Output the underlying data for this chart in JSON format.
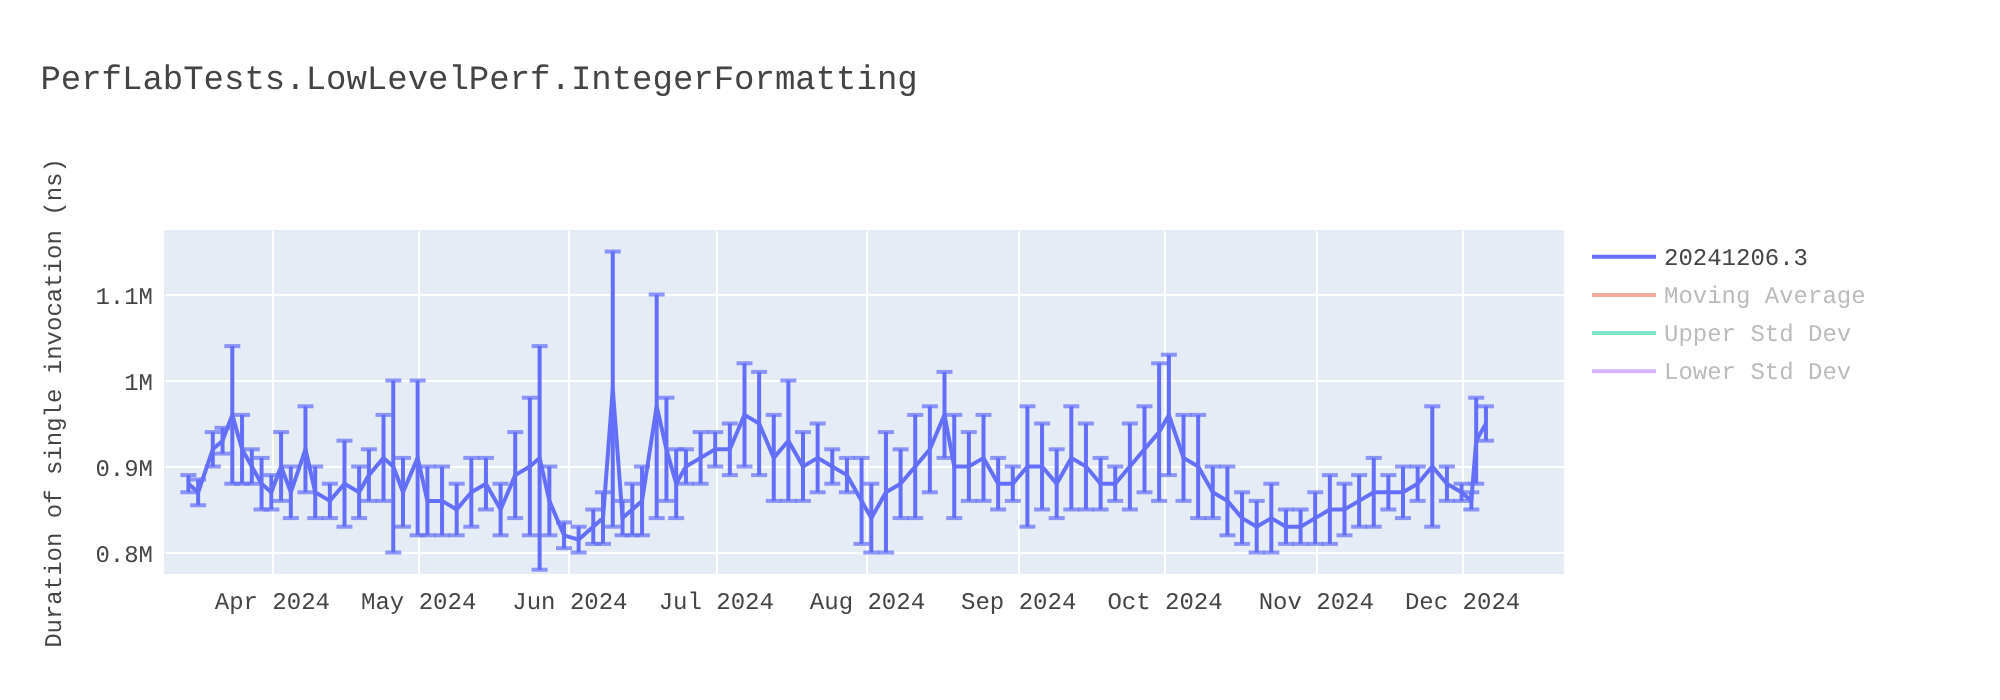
{
  "chart_data": {
    "type": "line",
    "title": "PerfLabTests.LowLevelPerf.IntegerFormatting",
    "ylabel": "Duration of single invocation (ns)",
    "x": [
      "2024-03-15",
      "2024-03-17",
      "2024-03-20",
      "2024-03-22",
      "2024-03-24",
      "2024-03-26",
      "2024-03-28",
      "2024-03-30",
      "2024-04-01",
      "2024-04-03",
      "2024-04-05",
      "2024-04-08",
      "2024-04-10",
      "2024-04-13",
      "2024-04-16",
      "2024-04-19",
      "2024-04-21",
      "2024-04-24",
      "2024-04-26",
      "2024-04-28",
      "2024-05-01",
      "2024-05-03",
      "2024-05-06",
      "2024-05-09",
      "2024-05-12",
      "2024-05-15",
      "2024-05-18",
      "2024-05-21",
      "2024-05-24",
      "2024-05-26",
      "2024-05-28",
      "2024-05-31",
      "2024-06-03",
      "2024-06-06",
      "2024-06-08",
      "2024-06-10",
      "2024-06-12",
      "2024-06-14",
      "2024-06-16",
      "2024-06-19",
      "2024-06-21",
      "2024-06-23",
      "2024-06-25",
      "2024-06-28",
      "2024-07-01",
      "2024-07-04",
      "2024-07-07",
      "2024-07-10",
      "2024-07-13",
      "2024-07-16",
      "2024-07-19",
      "2024-07-22",
      "2024-07-25",
      "2024-07-28",
      "2024-07-31",
      "2024-08-02",
      "2024-08-05",
      "2024-08-08",
      "2024-08-11",
      "2024-08-14",
      "2024-08-17",
      "2024-08-19",
      "2024-08-22",
      "2024-08-25",
      "2024-08-28",
      "2024-08-31",
      "2024-09-03",
      "2024-09-06",
      "2024-09-09",
      "2024-09-12",
      "2024-09-15",
      "2024-09-18",
      "2024-09-21",
      "2024-09-24",
      "2024-09-27",
      "2024-09-30",
      "2024-10-02",
      "2024-10-05",
      "2024-10-08",
      "2024-10-11",
      "2024-10-14",
      "2024-10-17",
      "2024-10-20",
      "2024-10-23",
      "2024-10-26",
      "2024-10-29",
      "2024-11-01",
      "2024-11-04",
      "2024-11-07",
      "2024-11-10",
      "2024-11-13",
      "2024-11-16",
      "2024-11-19",
      "2024-11-22",
      "2024-11-25",
      "2024-11-28",
      "2024-12-01",
      "2024-12-03",
      "2024-12-04",
      "2024-12-06"
    ],
    "series": [
      {
        "name": "20241206.3",
        "color": "#636efa",
        "values": [
          880000,
          870000,
          920000,
          930000,
          960000,
          920000,
          900000,
          880000,
          870000,
          900000,
          870000,
          920000,
          870000,
          860000,
          880000,
          870000,
          890000,
          910000,
          900000,
          870000,
          910000,
          860000,
          860000,
          850000,
          870000,
          880000,
          850000,
          890000,
          900000,
          910000,
          860000,
          820000,
          815000,
          830000,
          840000,
          990000,
          840000,
          850000,
          860000,
          970000,
          920000,
          880000,
          900000,
          910000,
          920000,
          920000,
          960000,
          950000,
          910000,
          930000,
          900000,
          910000,
          900000,
          890000,
          860000,
          840000,
          870000,
          880000,
          900000,
          920000,
          960000,
          900000,
          900000,
          910000,
          880000,
          880000,
          900000,
          900000,
          880000,
          910000,
          900000,
          880000,
          880000,
          900000,
          920000,
          940000,
          960000,
          910000,
          900000,
          870000,
          860000,
          840000,
          830000,
          840000,
          830000,
          830000,
          840000,
          850000,
          850000,
          860000,
          870000,
          870000,
          870000,
          880000,
          900000,
          880000,
          870000,
          860000,
          930000,
          950000
        ],
        "errors": [
          10000,
          15000,
          20000,
          15000,
          80000,
          40000,
          20000,
          30000,
          20000,
          40000,
          30000,
          50000,
          30000,
          20000,
          50000,
          30000,
          30000,
          50000,
          100000,
          40000,
          90000,
          40000,
          40000,
          30000,
          40000,
          30000,
          30000,
          50000,
          80000,
          130000,
          40000,
          15000,
          15000,
          20000,
          30000,
          160000,
          20000,
          30000,
          40000,
          130000,
          60000,
          40000,
          20000,
          30000,
          20000,
          30000,
          60000,
          60000,
          50000,
          70000,
          40000,
          40000,
          20000,
          20000,
          50000,
          40000,
          70000,
          40000,
          60000,
          50000,
          50000,
          60000,
          40000,
          50000,
          30000,
          20000,
          70000,
          50000,
          40000,
          60000,
          50000,
          30000,
          20000,
          50000,
          50000,
          80000,
          70000,
          50000,
          60000,
          30000,
          40000,
          30000,
          30000,
          40000,
          20000,
          20000,
          30000,
          40000,
          30000,
          30000,
          40000,
          20000,
          30000,
          20000,
          70000,
          20000,
          10000,
          10000,
          50000,
          20000
        ]
      },
      {
        "name": "Moving Average",
        "color": "#ef553b",
        "values": [
          null,
          null,
          null,
          null,
          null,
          null,
          null,
          null,
          null,
          null,
          null,
          null,
          null,
          null,
          null,
          null,
          null,
          null,
          null,
          null,
          null,
          null,
          null,
          null,
          null,
          null,
          null,
          null,
          null,
          null,
          null,
          null,
          null,
          null,
          null,
          null,
          null,
          null,
          null,
          null,
          null,
          null,
          null,
          null,
          null,
          null,
          null,
          null,
          null,
          null,
          null,
          null,
          null,
          null,
          null,
          null,
          null,
          null,
          null,
          null,
          null,
          null,
          null,
          null,
          null,
          null,
          null,
          null,
          null,
          null,
          null,
          null,
          null,
          null,
          null,
          null,
          null,
          null,
          null,
          null,
          null,
          null,
          null,
          null,
          null,
          null,
          null,
          null,
          null,
          null,
          null,
          null,
          null,
          null,
          null,
          null,
          null,
          null,
          null,
          null
        ]
      },
      {
        "name": "Upper Std Dev",
        "color": "#00cc96",
        "values": [
          null,
          null,
          null,
          null,
          null,
          null,
          null,
          null,
          null,
          null,
          null,
          null,
          null,
          null,
          null,
          null,
          null,
          null,
          null,
          null,
          null,
          null,
          null,
          null,
          null,
          null,
          null,
          null,
          null,
          null,
          null,
          null,
          null,
          null,
          null,
          null,
          null,
          null,
          null,
          null,
          null,
          null,
          null,
          null,
          null,
          null,
          null,
          null,
          null,
          null,
          null,
          null,
          null,
          null,
          null,
          null,
          null,
          null,
          null,
          null,
          null,
          null,
          null,
          null,
          null,
          null,
          null,
          null,
          null,
          null,
          null,
          null,
          null,
          null,
          null,
          null,
          null,
          null,
          null,
          null,
          null,
          null,
          null,
          null,
          null,
          null,
          null,
          null,
          null,
          null,
          null,
          null,
          null,
          null,
          null,
          null,
          null,
          null,
          null,
          null
        ]
      },
      {
        "name": "Lower Std Dev",
        "color": "#ab63fa",
        "values": [
          null,
          null,
          null,
          null,
          null,
          null,
          null,
          null,
          null,
          null,
          null,
          null,
          null,
          null,
          null,
          null,
          null,
          null,
          null,
          null,
          null,
          null,
          null,
          null,
          null,
          null,
          null,
          null,
          null,
          null,
          null,
          null,
          null,
          null,
          null,
          null,
          null,
          null,
          null,
          null,
          null,
          null,
          null,
          null,
          null,
          null,
          null,
          null,
          null,
          null,
          null,
          null,
          null,
          null,
          null,
          null,
          null,
          null,
          null,
          null,
          null,
          null,
          null,
          null,
          null,
          null,
          null,
          null,
          null,
          null,
          null,
          null,
          null,
          null,
          null,
          null,
          null,
          null,
          null,
          null,
          null,
          null,
          null,
          null,
          null,
          null,
          null,
          null,
          null,
          null,
          null,
          null,
          null,
          null,
          null,
          null,
          null,
          null,
          null,
          null
        ]
      }
    ],
    "xlim": [
      "2024-03-10",
      "2024-12-22"
    ],
    "xticks": [
      {
        "value": "2024-04-01",
        "label": "Apr 2024"
      },
      {
        "value": "2024-05-01",
        "label": "May 2024"
      },
      {
        "value": "2024-06-01",
        "label": "Jun 2024"
      },
      {
        "value": "2024-07-01",
        "label": "Jul 2024"
      },
      {
        "value": "2024-08-01",
        "label": "Aug 2024"
      },
      {
        "value": "2024-09-01",
        "label": "Sep 2024"
      },
      {
        "value": "2024-10-01",
        "label": "Oct 2024"
      },
      {
        "value": "2024-11-01",
        "label": "Nov 2024"
      },
      {
        "value": "2024-12-01",
        "label": "Dec 2024"
      }
    ],
    "ylim": [
      775000,
      1175000
    ],
    "yticks": [
      {
        "value": 800000,
        "label": "0.8M"
      },
      {
        "value": 900000,
        "label": "0.9M"
      },
      {
        "value": 1000000,
        "label": "1M"
      },
      {
        "value": 1100000,
        "label": "1.1M"
      }
    ],
    "grid": true,
    "legend": "top right",
    "marker": "none",
    "line_style": "solid"
  }
}
